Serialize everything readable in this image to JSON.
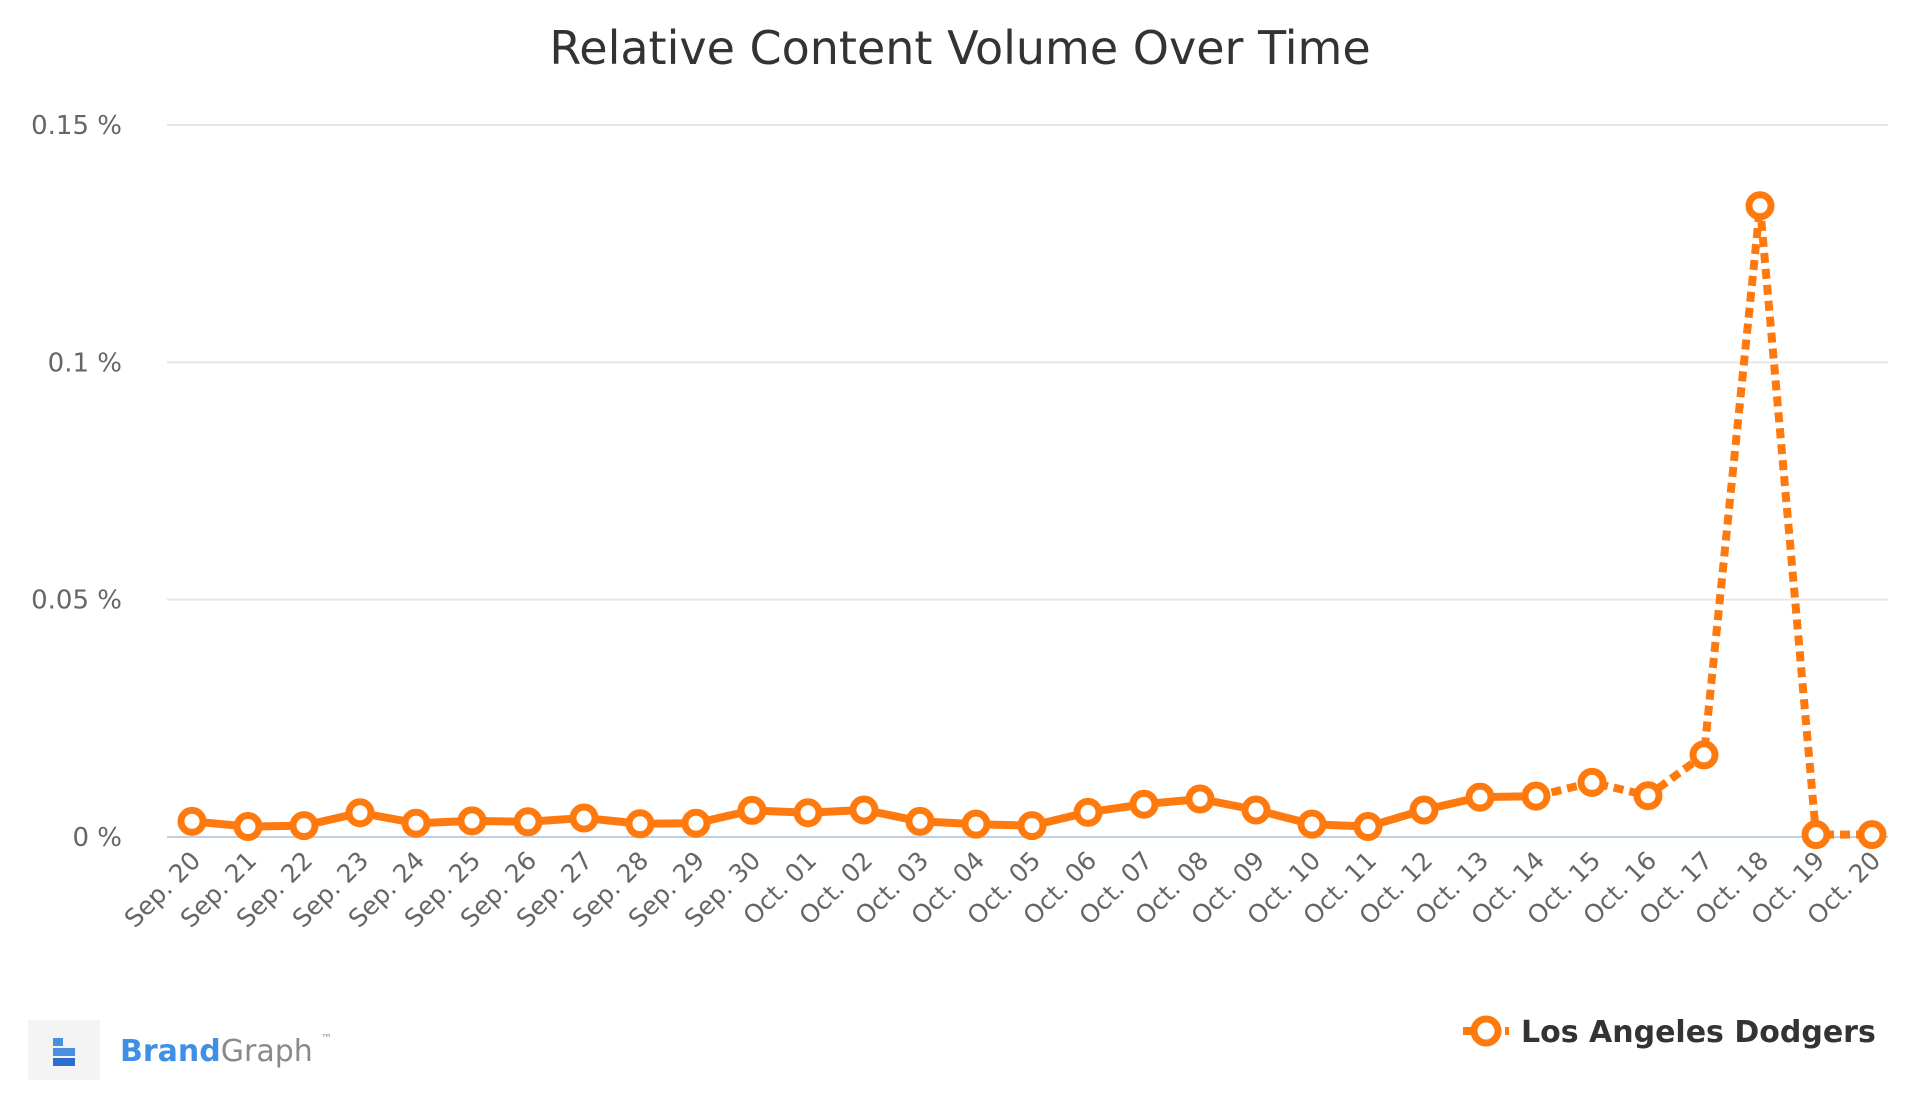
{
  "chart_data": {
    "type": "line",
    "title": "Relative Content Volume Over Time",
    "xlabel": "",
    "ylabel": "",
    "ylim": [
      0,
      0.15
    ],
    "y_ticks": [
      0,
      0.05,
      0.1,
      0.15
    ],
    "y_tick_labels": [
      "0 %",
      "0.05 %",
      "0.1 %",
      "0.15 %"
    ],
    "grid": true,
    "legend_position": "bottom-right",
    "categories": [
      "Sep. 20",
      "Sep. 21",
      "Sep. 22",
      "Sep. 23",
      "Sep. 24",
      "Sep. 25",
      "Sep. 26",
      "Sep. 27",
      "Sep. 28",
      "Sep. 29",
      "Sep. 30",
      "Oct. 01",
      "Oct. 02",
      "Oct. 03",
      "Oct. 04",
      "Oct. 05",
      "Oct. 06",
      "Oct. 07",
      "Oct. 08",
      "Oct. 09",
      "Oct. 10",
      "Oct. 11",
      "Oct. 12",
      "Oct. 13",
      "Oct. 14",
      "Oct. 15",
      "Oct. 16",
      "Oct. 17",
      "Oct. 18",
      "Oct. 19",
      "Oct. 20"
    ],
    "series": [
      {
        "name": "Los Angeles Dodgers",
        "color": "#ff7a0e",
        "values": [
          0.0033,
          0.0022,
          0.0024,
          0.0051,
          0.0029,
          0.0034,
          0.0032,
          0.004,
          0.0028,
          0.0029,
          0.0056,
          0.0051,
          0.0057,
          0.0033,
          0.0027,
          0.0024,
          0.0052,
          0.0069,
          0.008,
          0.0057,
          0.0027,
          0.0022,
          0.0057,
          0.0084,
          0.0086,
          0.0115,
          0.0087,
          0.0173,
          0.133,
          0.0005,
          0.0005
        ],
        "solid_until_index": 24
      }
    ]
  },
  "brand": {
    "name_part1": "Brand",
    "name_part2": "Graph",
    "trademark": "™",
    "icon": "brandgraph-logo-icon"
  }
}
